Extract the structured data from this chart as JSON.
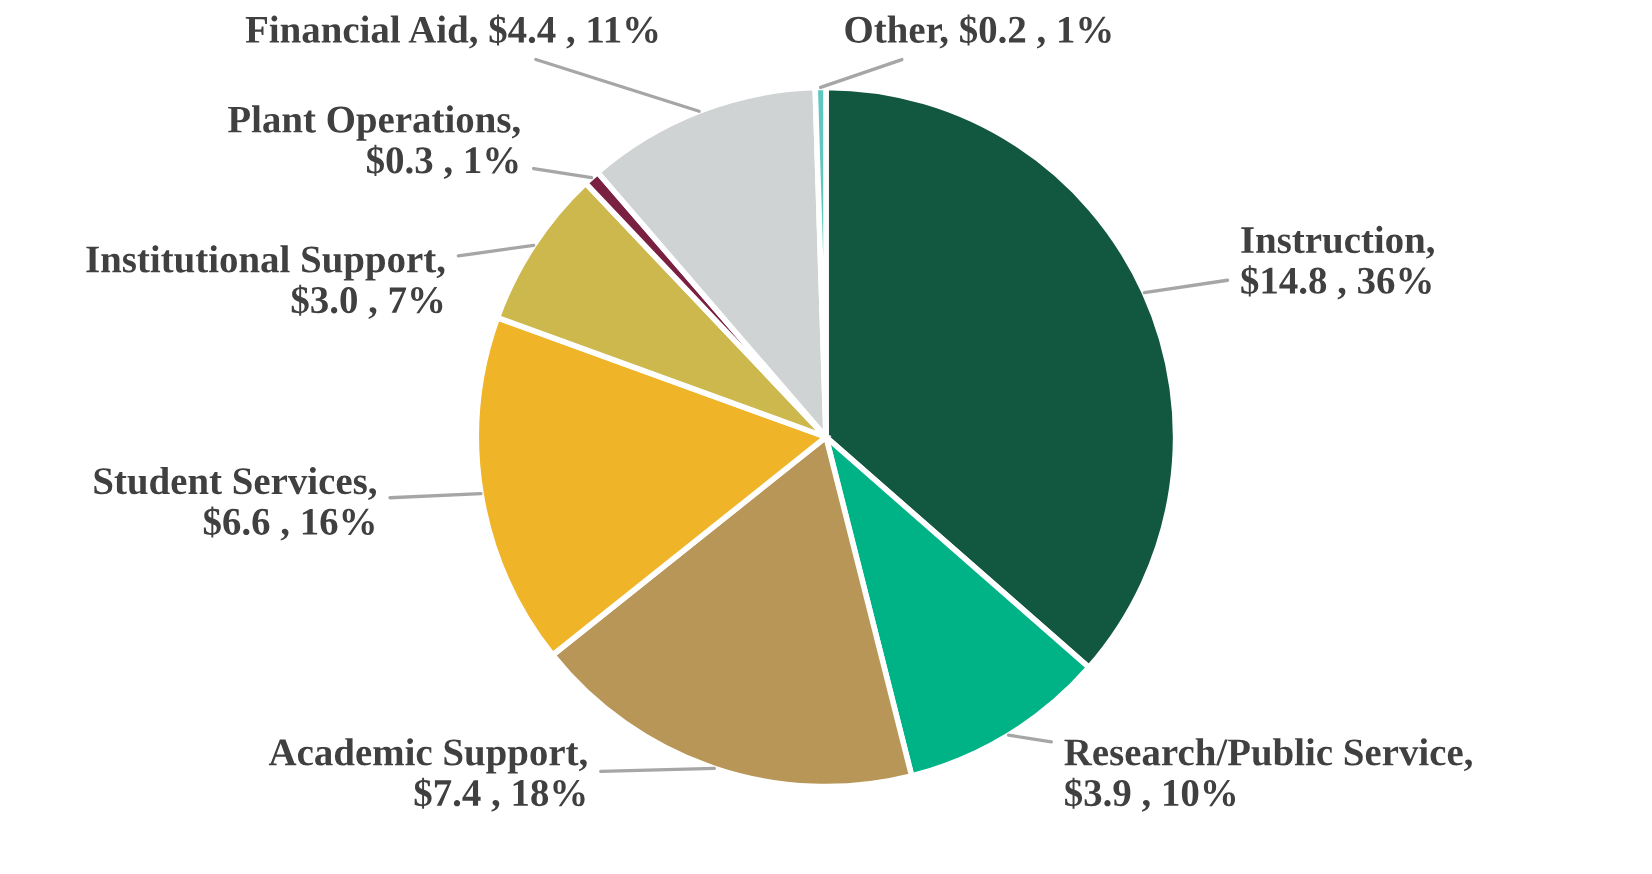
{
  "chart_data": {
    "type": "pie",
    "categories": [
      "Instruction, $14.8 , 36%",
      "Research/Public Service, $3.9 , 10%",
      "Academic Support, $7.4 , 18%",
      "Student Services, $6.6 , 16%",
      "Institutional Support, $3.0 , 7%",
      "Plant Operations, $0.3 , 1%",
      "Financial Aid, $4.4 , 11%",
      "Other, $0.2 , 1%"
    ],
    "values": [
      14.8,
      3.9,
      7.4,
      6.6,
      3.0,
      0.3,
      4.4,
      0.2
    ],
    "colors": [
      "#12573f",
      "#00b386",
      "#b89658",
      "#f0b429",
      "#cdb84e",
      "#7a2040",
      "#d0d3d4",
      "#5fc6c0"
    ]
  }
}
